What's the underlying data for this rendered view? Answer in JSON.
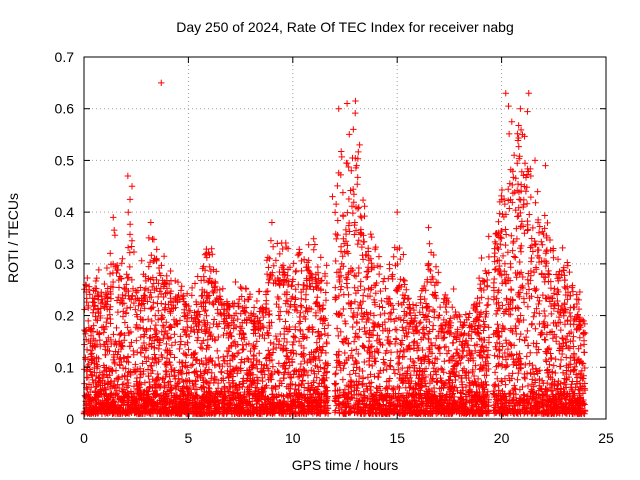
{
  "chart_data": {
    "type": "scatter",
    "title": "Day 250 of 2024, Rate Of TEC Index for receiver nabg",
    "xlabel": "GPS time / hours",
    "ylabel": "ROTI / TECUs",
    "xlim": [
      0,
      25
    ],
    "ylim": [
      0,
      0.7
    ],
    "xticks": [
      0,
      5,
      10,
      15,
      20,
      25
    ],
    "yticks": [
      0,
      0.1,
      0.2,
      0.3,
      0.4,
      0.5,
      0.6,
      0.7
    ],
    "grid": true,
    "marker": "plus",
    "color": "#ff0000",
    "envelope": [
      {
        "x": 0.0,
        "y": 0.27
      },
      {
        "x": 0.5,
        "y": 0.3
      },
      {
        "x": 1.0,
        "y": 0.28
      },
      {
        "x": 1.5,
        "y": 0.38
      },
      {
        "x": 2.0,
        "y": 0.3
      },
      {
        "x": 2.2,
        "y": 0.47
      },
      {
        "x": 2.5,
        "y": 0.3
      },
      {
        "x": 3.0,
        "y": 0.33
      },
      {
        "x": 3.2,
        "y": 0.38
      },
      {
        "x": 3.7,
        "y": 0.35
      },
      {
        "x": 4.0,
        "y": 0.3
      },
      {
        "x": 4.5,
        "y": 0.3
      },
      {
        "x": 5.0,
        "y": 0.27
      },
      {
        "x": 5.5,
        "y": 0.28
      },
      {
        "x": 6.0,
        "y": 0.35
      },
      {
        "x": 6.5,
        "y": 0.28
      },
      {
        "x": 7.0,
        "y": 0.27
      },
      {
        "x": 7.5,
        "y": 0.27
      },
      {
        "x": 8.0,
        "y": 0.25
      },
      {
        "x": 8.5,
        "y": 0.25
      },
      {
        "x": 9.0,
        "y": 0.37
      },
      {
        "x": 9.5,
        "y": 0.35
      },
      {
        "x": 10.0,
        "y": 0.33
      },
      {
        "x": 10.5,
        "y": 0.33
      },
      {
        "x": 11.0,
        "y": 0.35
      },
      {
        "x": 11.5,
        "y": 0.32
      },
      {
        "x": 12.0,
        "y": 0.43
      },
      {
        "x": 12.5,
        "y": 0.58
      },
      {
        "x": 13.0,
        "y": 0.6
      },
      {
        "x": 13.5,
        "y": 0.4
      },
      {
        "x": 14.0,
        "y": 0.33
      },
      {
        "x": 14.5,
        "y": 0.28
      },
      {
        "x": 15.0,
        "y": 0.38
      },
      {
        "x": 15.5,
        "y": 0.28
      },
      {
        "x": 16.0,
        "y": 0.26
      },
      {
        "x": 16.5,
        "y": 0.36
      },
      {
        "x": 17.0,
        "y": 0.28
      },
      {
        "x": 17.5,
        "y": 0.27
      },
      {
        "x": 18.0,
        "y": 0.25
      },
      {
        "x": 18.5,
        "y": 0.23
      },
      {
        "x": 19.0,
        "y": 0.32
      },
      {
        "x": 19.5,
        "y": 0.4
      },
      {
        "x": 20.0,
        "y": 0.45
      },
      {
        "x": 20.3,
        "y": 0.62
      },
      {
        "x": 20.7,
        "y": 0.58
      },
      {
        "x": 21.2,
        "y": 0.62
      },
      {
        "x": 21.5,
        "y": 0.45
      },
      {
        "x": 22.0,
        "y": 0.45
      },
      {
        "x": 22.5,
        "y": 0.35
      },
      {
        "x": 23.0,
        "y": 0.33
      },
      {
        "x": 23.5,
        "y": 0.28
      },
      {
        "x": 24.0,
        "y": 0.24
      }
    ],
    "outliers": [
      {
        "x": 3.7,
        "y": 0.65
      },
      {
        "x": 2.1,
        "y": 0.47
      },
      {
        "x": 2.3,
        "y": 0.45
      },
      {
        "x": 12.2,
        "y": 0.6
      },
      {
        "x": 12.6,
        "y": 0.61
      },
      {
        "x": 13.0,
        "y": 0.615
      },
      {
        "x": 12.9,
        "y": 0.56
      },
      {
        "x": 13.2,
        "y": 0.53
      },
      {
        "x": 12.8,
        "y": 0.48
      },
      {
        "x": 20.2,
        "y": 0.63
      },
      {
        "x": 20.9,
        "y": 0.6
      },
      {
        "x": 21.3,
        "y": 0.63
      },
      {
        "x": 21.0,
        "y": 0.55
      },
      {
        "x": 21.6,
        "y": 0.5
      },
      {
        "x": 22.1,
        "y": 0.49
      },
      {
        "x": 21.4,
        "y": 0.47
      },
      {
        "x": 20.6,
        "y": 0.51
      },
      {
        "x": 3.2,
        "y": 0.38
      },
      {
        "x": 1.4,
        "y": 0.39
      },
      {
        "x": 9.0,
        "y": 0.38
      },
      {
        "x": 16.5,
        "y": 0.37
      },
      {
        "x": 15.0,
        "y": 0.4
      },
      {
        "x": 11.9,
        "y": 0.43
      }
    ],
    "gaps": [
      [
        11.7,
        12.0
      ],
      [
        19.4,
        19.6
      ]
    ],
    "time_span": [
      0,
      24
    ]
  }
}
